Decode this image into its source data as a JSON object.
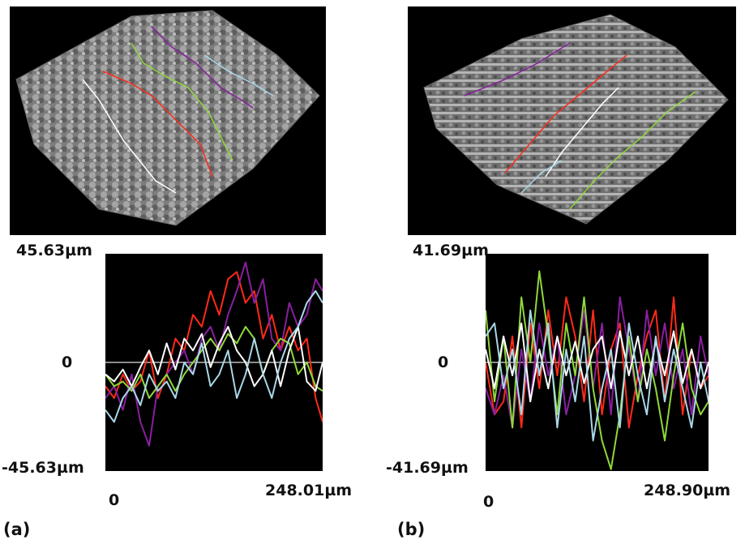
{
  "figure": {
    "panel_a_caption": "(a)",
    "panel_b_caption": "(b)"
  },
  "colors": {
    "red": "#ff2a1a",
    "purple": "#8a1fa0",
    "green": "#8fd83a",
    "white": "#ffffff",
    "lightblue": "#a8d8e8",
    "zero_line": "#bbbbbb",
    "surface": "#8e8e8e"
  },
  "chart_data": [
    {
      "type": "line",
      "panel": "(a)",
      "y_top_label": "45.63µm",
      "y_zero_label": "0",
      "y_bottom_label": "-45.63µm",
      "x_start_label": "0",
      "x_end_label": "248.01µm",
      "xlim": [
        0,
        248.01
      ],
      "ylim": [
        -45.63,
        45.63
      ],
      "series": [
        {
          "color": "red",
          "x": [
            0,
            10,
            20,
            30,
            40,
            50,
            60,
            70,
            80,
            90,
            100,
            110,
            120,
            130,
            140,
            150,
            160,
            170,
            180,
            190,
            200,
            210,
            220,
            230,
            240,
            248
          ],
          "y": [
            -10,
            -15,
            -5,
            -12,
            -8,
            5,
            -15,
            -5,
            10,
            5,
            20,
            15,
            30,
            20,
            35,
            38,
            25,
            30,
            10,
            20,
            5,
            15,
            5,
            10,
            -15,
            -25
          ]
        },
        {
          "color": "purple",
          "x": [
            0,
            10,
            20,
            30,
            40,
            50,
            60,
            70,
            80,
            90,
            100,
            110,
            120,
            130,
            140,
            150,
            160,
            170,
            180,
            190,
            200,
            210,
            220,
            230,
            240,
            248
          ],
          "y": [
            -15,
            -10,
            -20,
            -5,
            -25,
            -35,
            -10,
            -5,
            0,
            5,
            -5,
            10,
            15,
            5,
            20,
            30,
            42,
            25,
            35,
            10,
            5,
            25,
            15,
            20,
            35,
            30
          ]
        },
        {
          "color": "green",
          "x": [
            0,
            10,
            20,
            30,
            40,
            50,
            60,
            70,
            80,
            90,
            100,
            110,
            120,
            130,
            140,
            150,
            160,
            170,
            180,
            190,
            200,
            210,
            220,
            230,
            240,
            248
          ],
          "y": [
            -5,
            -10,
            -8,
            -12,
            -5,
            -15,
            -10,
            -5,
            -12,
            -5,
            0,
            5,
            10,
            5,
            12,
            8,
            15,
            10,
            -5,
            5,
            10,
            8,
            -5,
            0,
            -10,
            -12
          ]
        },
        {
          "color": "white",
          "x": [
            0,
            10,
            20,
            30,
            40,
            50,
            60,
            70,
            80,
            90,
            100,
            110,
            120,
            130,
            140,
            150,
            160,
            170,
            180,
            190,
            200,
            210,
            220,
            230,
            240,
            248
          ],
          "y": [
            -5,
            -8,
            -3,
            -10,
            -2,
            5,
            -5,
            8,
            -3,
            10,
            5,
            12,
            -2,
            8,
            15,
            5,
            0,
            -10,
            -5,
            5,
            -10,
            5,
            15,
            -8,
            -12,
            0
          ]
        },
        {
          "color": "lightblue",
          "x": [
            0,
            10,
            20,
            30,
            40,
            50,
            60,
            70,
            80,
            90,
            100,
            110,
            120,
            130,
            140,
            150,
            160,
            170,
            180,
            190,
            200,
            210,
            220,
            230,
            240,
            248
          ],
          "y": [
            -20,
            -25,
            -15,
            -10,
            -18,
            -5,
            -12,
            -8,
            -15,
            0,
            -5,
            8,
            -10,
            -5,
            5,
            -15,
            -5,
            10,
            -5,
            -15,
            0,
            10,
            15,
            25,
            30,
            25
          ]
        }
      ]
    },
    {
      "type": "line",
      "panel": "(b)",
      "y_top_label": "41.69µm",
      "y_zero_label": "0",
      "y_bottom_label": "-41.69µm",
      "x_start_label": "0",
      "x_end_label": "248.90µm",
      "xlim": [
        0,
        248.9
      ],
      "ylim": [
        -41.69,
        41.69
      ],
      "series": [
        {
          "color": "red",
          "x": [
            0,
            10,
            20,
            30,
            40,
            50,
            60,
            70,
            80,
            90,
            100,
            110,
            120,
            130,
            140,
            150,
            160,
            170,
            180,
            190,
            200,
            210,
            220,
            230,
            240,
            249
          ],
          "y": [
            0,
            -20,
            -15,
            10,
            -25,
            15,
            -10,
            20,
            -5,
            25,
            10,
            -15,
            20,
            -20,
            5,
            15,
            -25,
            -5,
            10,
            20,
            -15,
            25,
            -20,
            5,
            -10,
            -5
          ]
        },
        {
          "color": "purple",
          "x": [
            0,
            10,
            20,
            30,
            40,
            50,
            60,
            70,
            80,
            90,
            100,
            110,
            120,
            130,
            140,
            150,
            160,
            170,
            180,
            190,
            200,
            210,
            220,
            230,
            240,
            249
          ],
          "y": [
            -10,
            -20,
            -5,
            -25,
            5,
            -15,
            15,
            -5,
            10,
            -20,
            -5,
            20,
            -10,
            15,
            -20,
            25,
            5,
            -15,
            20,
            -5,
            15,
            -10,
            5,
            -20,
            10,
            -5
          ]
        },
        {
          "color": "green",
          "x": [
            0,
            10,
            20,
            30,
            40,
            50,
            60,
            70,
            80,
            90,
            100,
            110,
            120,
            130,
            140,
            150,
            160,
            170,
            180,
            190,
            200,
            210,
            220,
            230,
            240,
            249
          ],
          "y": [
            20,
            -15,
            10,
            -25,
            25,
            0,
            35,
            10,
            -20,
            15,
            -5,
            25,
            -10,
            -30,
            -41,
            -20,
            10,
            -15,
            5,
            -10,
            -30,
            -5,
            15,
            -10,
            -20,
            -15
          ]
        },
        {
          "color": "white",
          "x": [
            0,
            10,
            20,
            30,
            40,
            50,
            60,
            70,
            80,
            90,
            100,
            110,
            120,
            130,
            140,
            150,
            160,
            170,
            180,
            190,
            200,
            210,
            220,
            230,
            240,
            249
          ],
          "y": [
            5,
            -10,
            10,
            -5,
            15,
            -15,
            5,
            -10,
            10,
            -5,
            8,
            -8,
            5,
            10,
            -10,
            12,
            -5,
            10,
            -10,
            8,
            -5,
            12,
            -8,
            5,
            -10,
            0
          ]
        },
        {
          "color": "lightblue",
          "x": [
            0,
            10,
            20,
            30,
            40,
            50,
            60,
            70,
            80,
            90,
            100,
            110,
            120,
            130,
            140,
            150,
            160,
            170,
            180,
            190,
            200,
            210,
            220,
            230,
            240,
            249
          ],
          "y": [
            10,
            15,
            -10,
            5,
            -20,
            20,
            -5,
            15,
            -25,
            5,
            -15,
            10,
            -30,
            -10,
            5,
            -25,
            15,
            -5,
            -20,
            10,
            -15,
            5,
            -10,
            -25,
            0,
            -15
          ]
        }
      ]
    }
  ]
}
